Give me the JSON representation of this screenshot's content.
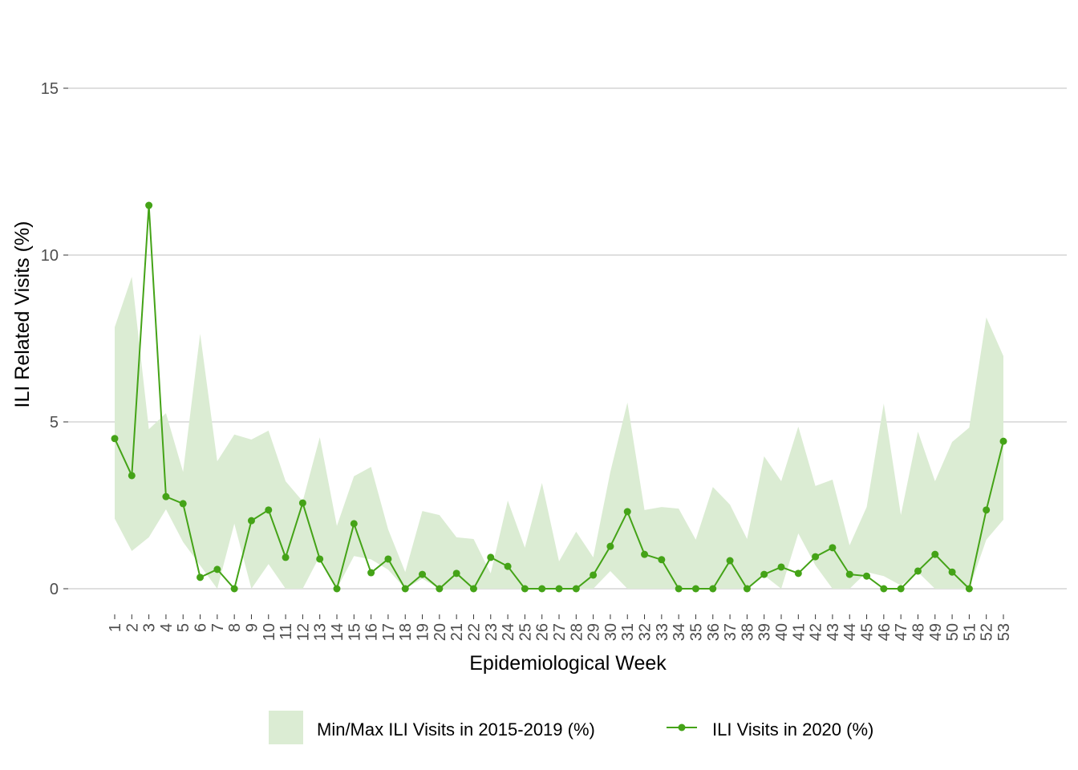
{
  "chart_data": {
    "type": "line",
    "title": "",
    "xlabel": "Epidemiological Week",
    "ylabel": "ILI Related Visits (%)",
    "ylim": [
      0,
      15
    ],
    "yticks": [
      0,
      5,
      10,
      15
    ],
    "grid": true,
    "legend_position": "bottom",
    "x": [
      1,
      2,
      3,
      4,
      5,
      6,
      7,
      8,
      9,
      10,
      11,
      12,
      13,
      14,
      15,
      16,
      17,
      18,
      19,
      20,
      21,
      22,
      23,
      24,
      25,
      26,
      27,
      28,
      29,
      30,
      31,
      32,
      33,
      34,
      35,
      36,
      37,
      38,
      39,
      40,
      41,
      42,
      43,
      44,
      45,
      46,
      47,
      48,
      49,
      50,
      51,
      52,
      53
    ],
    "band": {
      "name": "Min/Max ILI Visits in 2015-2019 (%)",
      "color": "#dbecd3",
      "max": [
        7.84,
        9.35,
        4.78,
        5.26,
        3.5,
        7.64,
        3.82,
        4.62,
        4.47,
        4.74,
        3.22,
        2.62,
        4.54,
        1.88,
        3.37,
        3.65,
        1.78,
        0.5,
        2.33,
        2.21,
        1.54,
        1.49,
        0.46,
        2.64,
        1.23,
        3.17,
        0.82,
        1.71,
        0.94,
        3.5,
        5.58,
        2.36,
        2.45,
        2.4,
        1.47,
        3.05,
        2.52,
        1.49,
        3.97,
        3.22,
        4.86,
        3.08,
        3.27,
        1.3,
        2.45,
        5.55,
        2.21,
        4.71,
        3.22,
        4.4,
        4.83,
        8.13,
        6.97
      ],
      "min": [
        2.1,
        1.13,
        1.54,
        2.38,
        1.4,
        0.7,
        0,
        1.95,
        0,
        0.74,
        0,
        0,
        0.98,
        0,
        0.98,
        0.88,
        0.57,
        0,
        0.3,
        0,
        0,
        0,
        0,
        0,
        0,
        0,
        0,
        0,
        0,
        0.53,
        0,
        0,
        0,
        0,
        0,
        0,
        0,
        0,
        0.4,
        0,
        1.66,
        0.7,
        0,
        0,
        0.5,
        0.38,
        0.1,
        0.5,
        0,
        0,
        0,
        1.47,
        2.07
      ]
    },
    "series": [
      {
        "name": "ILI Visits in 2020 (%)",
        "color": "#44a317",
        "values": [
          4.5,
          3.39,
          11.49,
          2.76,
          2.55,
          0.34,
          0.58,
          0,
          2.04,
          2.36,
          0.94,
          2.57,
          0.89,
          0,
          1.95,
          0.48,
          0.89,
          0,
          0.43,
          0,
          0.46,
          0,
          0.94,
          0.67,
          0,
          0,
          0,
          0,
          0.41,
          1.27,
          2.31,
          1.03,
          0.87,
          0,
          0,
          0,
          0.84,
          0,
          0.43,
          0.65,
          0.46,
          0.96,
          1.23,
          0.43,
          0.38,
          0,
          0,
          0.53,
          1.03,
          0.5,
          0,
          2.36,
          4.42
        ]
      }
    ]
  }
}
